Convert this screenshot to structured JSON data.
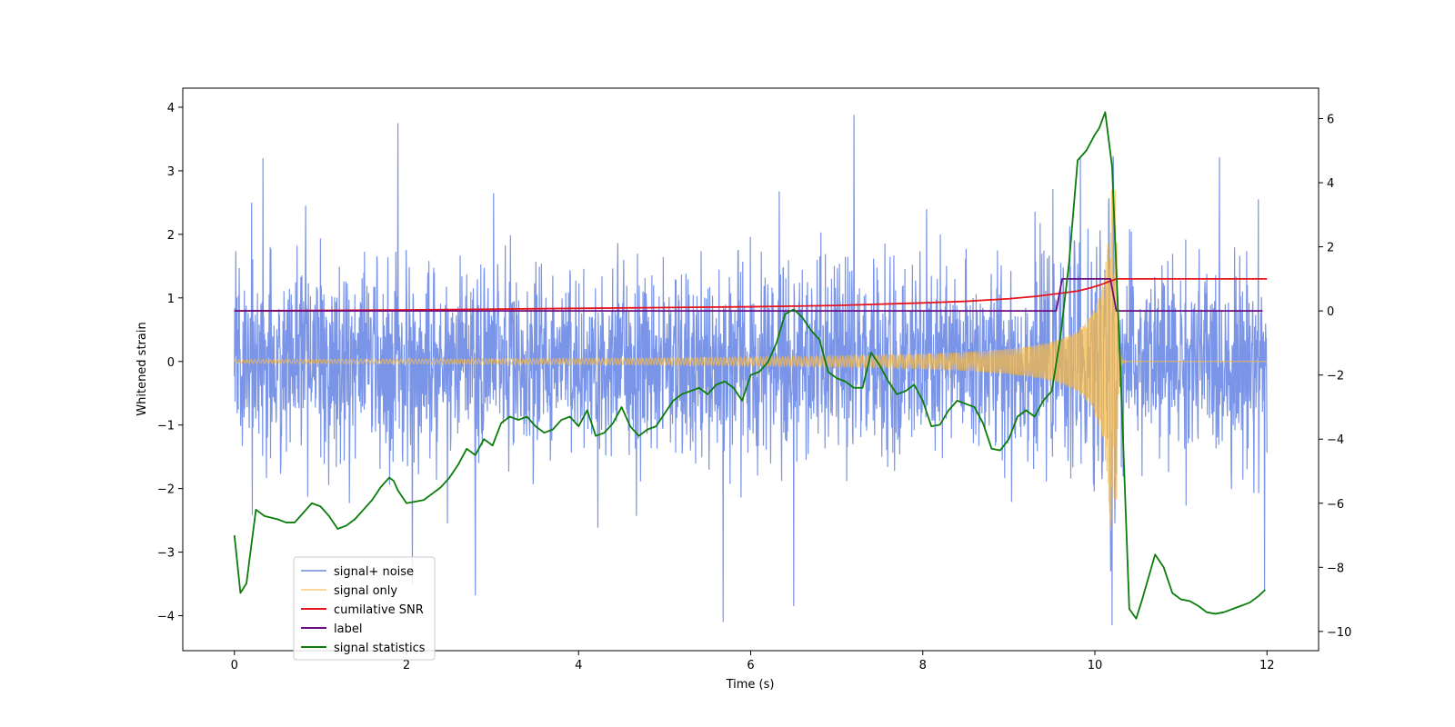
{
  "chart_data": {
    "type": "line",
    "xlabel": "Time (s)",
    "ylabel": "Whitened strain",
    "xlim": [
      -0.6,
      12.6
    ],
    "ylim": [
      -4.55,
      4.3
    ],
    "y2lim": [
      -10.6,
      6.95
    ],
    "x_ticks": [
      0,
      2,
      4,
      6,
      8,
      10,
      12
    ],
    "x_tick_labels": [
      "0",
      "2",
      "4",
      "6",
      "8",
      "10",
      "12"
    ],
    "y_ticks": [
      4,
      3,
      2,
      1,
      0,
      -1,
      -2,
      -3,
      -4
    ],
    "y_tick_labels": [
      "4",
      "3",
      "2",
      "1",
      "0",
      "−1",
      "−2",
      "−3",
      "−4"
    ],
    "y2_ticks": [
      6,
      4,
      2,
      0,
      -2,
      -4,
      -6,
      -8,
      -10
    ],
    "y2_tick_labels": [
      "6",
      "4",
      "2",
      "0",
      "−2",
      "−4",
      "−6",
      "−8",
      "−10"
    ],
    "legend_position": "lower-left",
    "grid": false,
    "series": [
      {
        "name": "signal+ noise",
        "axis": "left",
        "color": "#6b8ae6",
        "x_range": [
          0,
          12
        ],
        "noise_std": 0.75,
        "peaks": [
          [
            0.2,
            2.5
          ],
          [
            0.33,
            3.2
          ],
          [
            1.9,
            3.75
          ],
          [
            2.8,
            -3.68
          ],
          [
            5.68,
            -4.1
          ],
          [
            6.5,
            -3.85
          ],
          [
            7.2,
            3.88
          ],
          [
            9.83,
            3.2
          ],
          [
            10.2,
            -4.15
          ],
          [
            11.97,
            -3.6
          ],
          [
            11.9,
            2.55
          ]
        ]
      },
      {
        "name": "signal only",
        "axis": "left",
        "color": "#f5b94a",
        "x_range": [
          0,
          12
        ],
        "merger_time": 10.25,
        "peak_amplitude": 2.7,
        "baseline_amplitude": 0.03
      },
      {
        "name": "cumilative SNR",
        "axis": "right",
        "color": "#e8141c",
        "x": [
          0,
          2,
          4,
          6,
          7,
          8,
          8.5,
          9,
          9.3,
          9.6,
          9.8,
          9.95,
          10.05,
          10.15,
          10.25,
          12
        ],
        "y": [
          0,
          0.03,
          0.08,
          0.13,
          0.17,
          0.25,
          0.3,
          0.38,
          0.45,
          0.55,
          0.62,
          0.72,
          0.8,
          0.9,
          1.0,
          1.0
        ]
      },
      {
        "name": "label",
        "axis": "right",
        "color": "#6a0d83",
        "x": [
          0,
          9.55,
          9.62,
          10.18,
          10.25,
          11.95
        ],
        "y": [
          0,
          0,
          1,
          1,
          0,
          0
        ]
      },
      {
        "name": "signal statistics",
        "axis": "right",
        "color": "#0a7d0a",
        "x": [
          0,
          0.07,
          0.14,
          0.25,
          0.35,
          0.5,
          0.6,
          0.7,
          0.8,
          0.9,
          1.0,
          1.1,
          1.2,
          1.3,
          1.4,
          1.5,
          1.6,
          1.7,
          1.8,
          1.85,
          1.9,
          2.0,
          2.1,
          2.2,
          2.3,
          2.4,
          2.5,
          2.6,
          2.7,
          2.8,
          2.9,
          3.0,
          3.1,
          3.2,
          3.3,
          3.4,
          3.5,
          3.6,
          3.7,
          3.8,
          3.9,
          4.0,
          4.1,
          4.2,
          4.3,
          4.4,
          4.5,
          4.6,
          4.7,
          4.8,
          4.9,
          5.0,
          5.1,
          5.2,
          5.3,
          5.4,
          5.5,
          5.6,
          5.7,
          5.8,
          5.9,
          6.0,
          6.1,
          6.2,
          6.3,
          6.4,
          6.5,
          6.6,
          6.7,
          6.8,
          6.9,
          7.0,
          7.1,
          7.2,
          7.3,
          7.4,
          7.5,
          7.6,
          7.7,
          7.8,
          7.9,
          8.0,
          8.1,
          8.2,
          8.3,
          8.4,
          8.5,
          8.6,
          8.7,
          8.8,
          8.9,
          9.0,
          9.1,
          9.2,
          9.3,
          9.4,
          9.5,
          9.6,
          9.7,
          9.8,
          9.9,
          10.0,
          10.05,
          10.12,
          10.2,
          10.3,
          10.4,
          10.48,
          10.55,
          10.7,
          10.8,
          10.9,
          11.0,
          11.1,
          11.2,
          11.3,
          11.4,
          11.5,
          11.6,
          11.7,
          11.8,
          11.9,
          11.98
        ],
        "y": [
          -7.0,
          -8.8,
          -8.5,
          -6.2,
          -6.4,
          -6.5,
          -6.6,
          -6.6,
          -6.3,
          -6.0,
          -6.1,
          -6.4,
          -6.8,
          -6.7,
          -6.5,
          -6.2,
          -5.9,
          -5.5,
          -5.2,
          -5.3,
          -5.6,
          -6.0,
          -5.95,
          -5.9,
          -5.7,
          -5.5,
          -5.2,
          -4.8,
          -4.3,
          -4.5,
          -4.0,
          -4.2,
          -3.5,
          -3.3,
          -3.4,
          -3.3,
          -3.6,
          -3.8,
          -3.7,
          -3.4,
          -3.3,
          -3.6,
          -3.1,
          -3.9,
          -3.8,
          -3.5,
          -3.0,
          -3.6,
          -3.9,
          -3.7,
          -3.6,
          -3.2,
          -2.8,
          -2.6,
          -2.5,
          -2.4,
          -2.6,
          -2.3,
          -2.2,
          -2.4,
          -2.8,
          -2.0,
          -1.9,
          -1.6,
          -1.0,
          -0.1,
          0.05,
          -0.2,
          -0.6,
          -0.9,
          -1.9,
          -2.1,
          -2.2,
          -2.4,
          -2.4,
          -1.3,
          -1.7,
          -2.2,
          -2.6,
          -2.5,
          -2.3,
          -2.8,
          -3.6,
          -3.55,
          -3.1,
          -2.8,
          -2.9,
          -3.0,
          -3.5,
          -4.3,
          -4.35,
          -4.0,
          -3.3,
          -3.1,
          -3.3,
          -2.8,
          -2.5,
          -0.8,
          1.5,
          4.7,
          5.0,
          5.5,
          5.7,
          6.2,
          4.5,
          -2.0,
          -9.3,
          -9.6,
          -9.0,
          -7.6,
          -8.0,
          -8.8,
          -9.0,
          -9.05,
          -9.2,
          -9.4,
          -9.45,
          -9.4,
          -9.3,
          -9.2,
          -9.1,
          -8.9,
          -8.7
        ]
      }
    ]
  }
}
